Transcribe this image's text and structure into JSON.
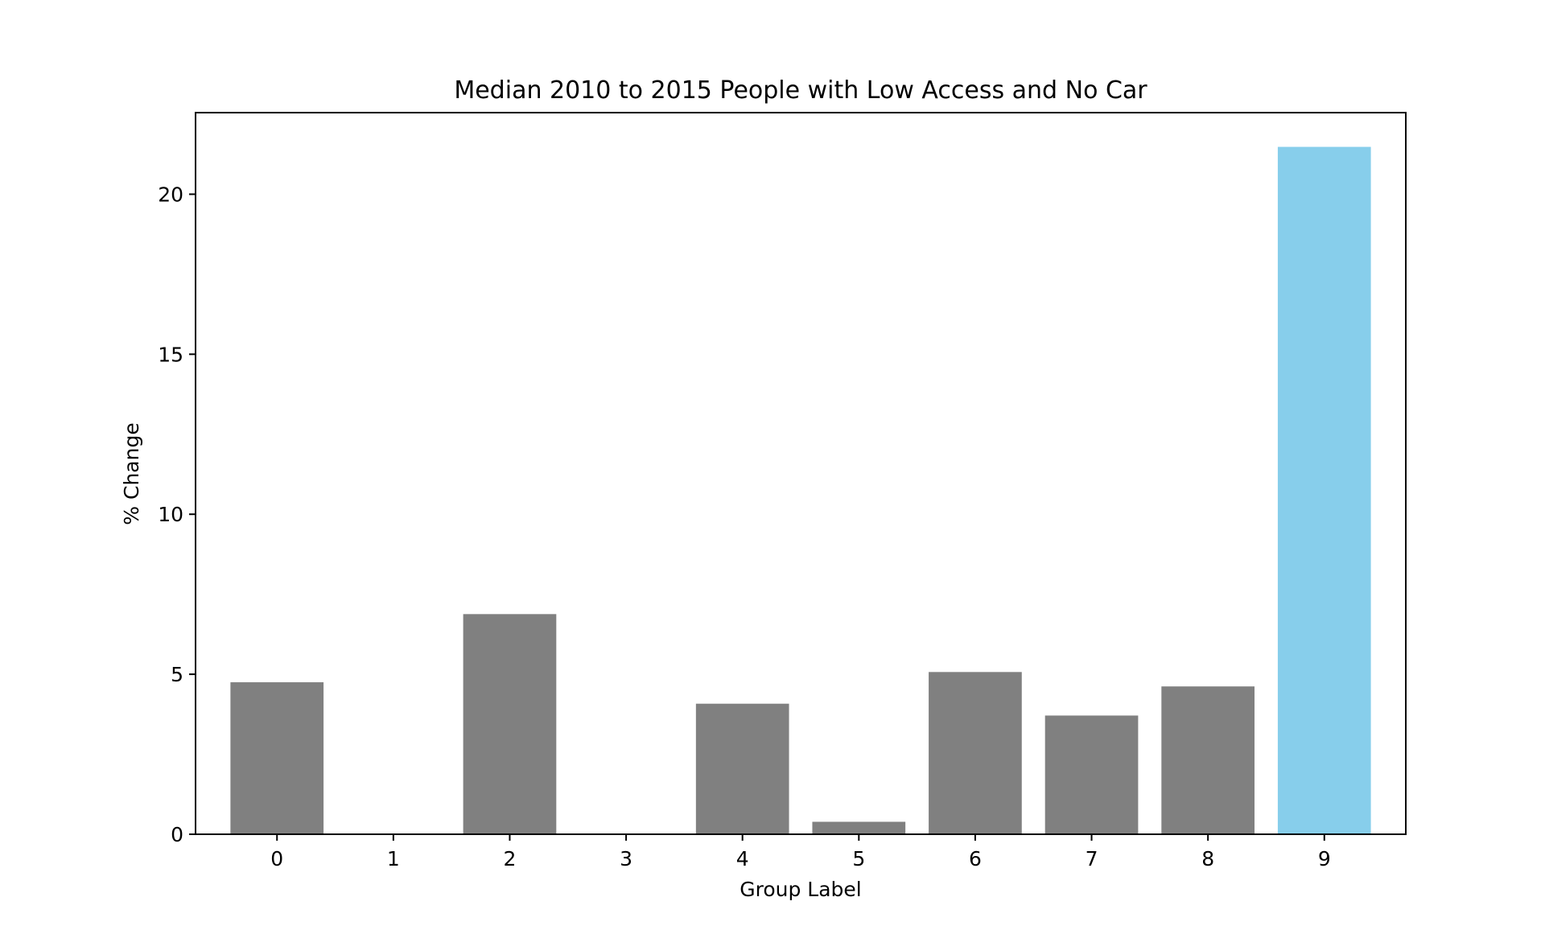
{
  "chart_data": {
    "type": "bar",
    "title": "Median 2010 to 2015 People with Low Access and No Car",
    "xlabel": "Group Label",
    "ylabel": "% Change",
    "categories": [
      "0",
      "1",
      "2",
      "3",
      "4",
      "5",
      "6",
      "7",
      "8",
      "9"
    ],
    "values": [
      4.75,
      0,
      6.88,
      0,
      4.08,
      0.39,
      5.07,
      3.71,
      4.62,
      21.48
    ],
    "bar_colors": [
      "#808080",
      "#808080",
      "#808080",
      "#808080",
      "#808080",
      "#808080",
      "#808080",
      "#808080",
      "#808080",
      "#87CEEB"
    ],
    "ylim": [
      0,
      22.55
    ],
    "yticks": [
      0,
      5,
      10,
      15,
      20
    ],
    "grid": false,
    "legend": null
  }
}
